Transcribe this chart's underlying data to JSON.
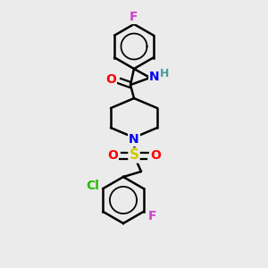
{
  "bg_color": "#ebebeb",
  "atom_colors": {
    "C": "#000000",
    "H": "#4a9a9a",
    "N": "#0000ee",
    "O": "#ff0000",
    "S": "#cccc00",
    "F": "#cc44cc",
    "Cl": "#22bb00"
  },
  "bond_color": "#000000",
  "bond_width": 1.8,
  "fig_size": [
    3.0,
    3.0
  ],
  "dpi": 100
}
